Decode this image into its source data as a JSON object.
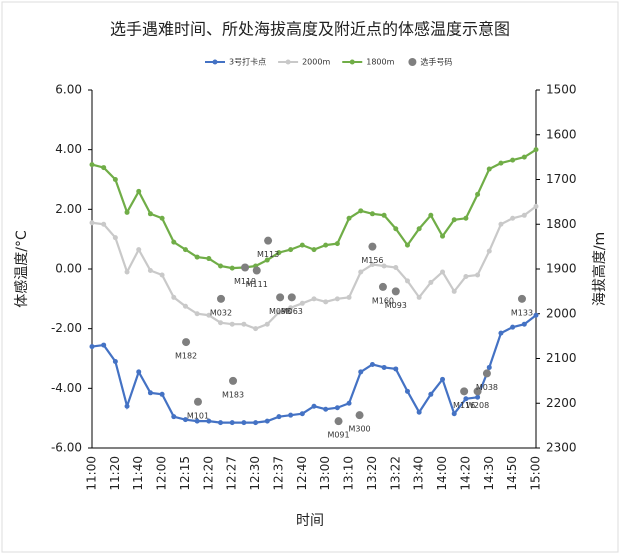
{
  "chart_data": {
    "type": "line",
    "title": "选手遇难时间、所处海拔高度及附近点的体感温度示意图",
    "xlabel": "时间",
    "ylabel": "体感温度/°C",
    "y2label": "海拔高度/m",
    "categories": [
      "11:00",
      null,
      "11:20",
      null,
      "11:40",
      null,
      "12:00",
      null,
      "12:15",
      null,
      "12:20",
      null,
      "12:27",
      null,
      "12:30",
      null,
      "12:37",
      null,
      "12:40",
      null,
      "13:00",
      null,
      "13:10",
      null,
      "13:20",
      null,
      "13:22",
      null,
      "13:40",
      null,
      "14:00",
      null,
      "14:20",
      null,
      "14:30",
      null,
      "14:50",
      null,
      "15:00"
    ],
    "ylim": [
      -6,
      6
    ],
    "yticks": [
      {
        "value": -6,
        "label": "-6.00"
      },
      {
        "value": -4,
        "label": "-4.00"
      },
      {
        "value": -2,
        "label": "-2.00"
      },
      {
        "value": 0,
        "label": "0.00"
      },
      {
        "value": 2,
        "label": "2.00"
      },
      {
        "value": 4,
        "label": "4.00"
      },
      {
        "value": 6,
        "label": "6.00"
      }
    ],
    "y2lim": [
      1500,
      2300
    ],
    "y2_reversed": true,
    "y2ticks": [
      1500,
      1600,
      1700,
      1800,
      1900,
      2000,
      2100,
      2200,
      2300
    ],
    "series": [
      {
        "name": "3号打卡点",
        "color": "#4472c4",
        "values": [
          -2.6,
          -2.55,
          -3.1,
          -4.6,
          -3.45,
          -4.15,
          -4.2,
          -4.95,
          -5.05,
          -5.1,
          -5.1,
          -5.15,
          -5.15,
          -5.15,
          -5.15,
          -5.1,
          -4.95,
          -4.9,
          -4.85,
          -4.6,
          -4.7,
          -4.65,
          -4.5,
          -3.45,
          -3.2,
          -3.3,
          -3.35,
          -4.1,
          -4.8,
          -4.2,
          -3.7,
          -4.85,
          -4.35,
          -4.3,
          -3.3,
          -2.15,
          -1.95,
          -1.85,
          -1.55
        ]
      },
      {
        "name": "2000m",
        "color": "#c9c9c9",
        "values": [
          1.55,
          1.5,
          1.05,
          -0.1,
          0.65,
          -0.05,
          -0.2,
          -0.95,
          -1.25,
          -1.5,
          -1.55,
          -1.8,
          -1.85,
          -1.85,
          -2.0,
          -1.85,
          -1.45,
          -1.3,
          -1.15,
          -1.0,
          -1.1,
          -1.0,
          -0.95,
          -0.1,
          0.15,
          0.1,
          0.05,
          -0.4,
          -0.95,
          -0.45,
          -0.1,
          -0.75,
          -0.25,
          -0.2,
          0.6,
          1.5,
          1.7,
          1.8,
          2.1
        ]
      },
      {
        "name": "1800m",
        "color": "#70ad47",
        "values": [
          3.5,
          3.4,
          3.0,
          1.9,
          2.6,
          1.85,
          1.7,
          0.9,
          0.65,
          0.4,
          0.35,
          0.1,
          0.03,
          0.05,
          0.1,
          0.3,
          0.55,
          0.65,
          0.8,
          0.65,
          0.8,
          0.85,
          1.7,
          1.95,
          1.85,
          1.8,
          1.35,
          0.8,
          1.35,
          1.8,
          1.1,
          1.65,
          1.7,
          2.5,
          3.35,
          3.55,
          3.65,
          3.75,
          4.0
        ]
      }
    ],
    "markers": {
      "name": "选手号码",
      "color": "#7f7f7f",
      "points": [
        {
          "label": "M182",
          "x": 8.05,
          "y": -2.45
        },
        {
          "label": "M101",
          "x": 9.07,
          "y": -4.45
        },
        {
          "label": "M032",
          "x": 11.04,
          "y": -1.0
        },
        {
          "label": "M183",
          "x": 12.07,
          "y": -3.75
        },
        {
          "label": "M119",
          "x": 13.1,
          "y": 0.05
        },
        {
          "label": "M111",
          "x": 14.1,
          "y": -0.05
        },
        {
          "label": "M113",
          "x": 15.07,
          "y": 0.95
        },
        {
          "label": "M098",
          "x": 16.1,
          "y": -0.95
        },
        {
          "label": "M063",
          "x": 17.1,
          "y": -0.95
        },
        {
          "label": "M091",
          "x": 21.1,
          "y": -5.1
        },
        {
          "label": "M300",
          "x": 22.9,
          "y": -4.9
        },
        {
          "label": "M156",
          "x": 24.0,
          "y": 0.75
        },
        {
          "label": "M160",
          "x": 24.9,
          "y": -0.6
        },
        {
          "label": "M093",
          "x": 26.0,
          "y": -0.75
        },
        {
          "label": "M116",
          "x": 31.85,
          "y": -4.1
        },
        {
          "label": "W208",
          "x": 33.0,
          "y": -4.1
        },
        {
          "label": "M038",
          "x": 33.8,
          "y": -3.5
        },
        {
          "label": "M133",
          "x": 36.8,
          "y": -1.0
        }
      ]
    }
  }
}
